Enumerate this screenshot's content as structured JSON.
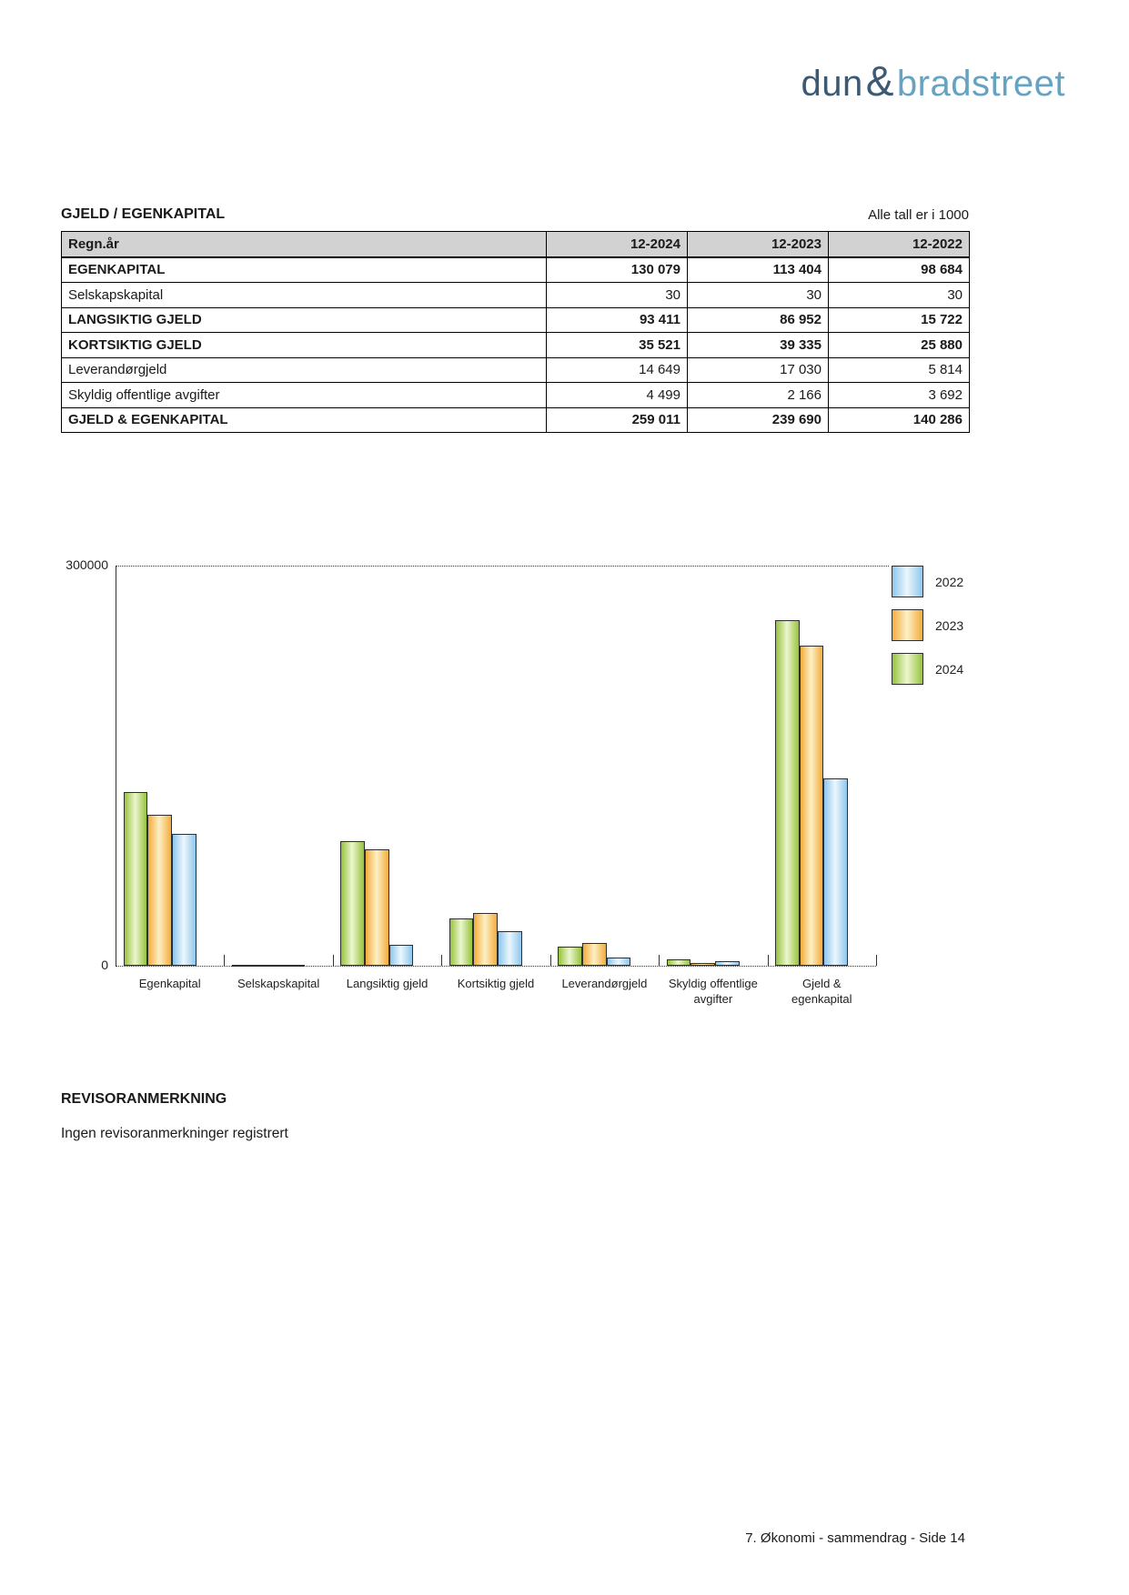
{
  "logo": {
    "dun": "dun",
    "amp": "&",
    "bradstreet": "bradstreet"
  },
  "table": {
    "title": "GJELD / EGENKAPITAL",
    "note": "Alle tall er i 1000",
    "header": [
      "Regn.år",
      "12-2024",
      "12-2023",
      "12-2022"
    ],
    "rows": [
      {
        "label": "EGENKAPITAL",
        "bold": true,
        "values": [
          "130 079",
          "113 404",
          "98 684"
        ]
      },
      {
        "label": "Selskapskapital",
        "bold": false,
        "values": [
          "30",
          "30",
          "30"
        ]
      },
      {
        "label": "LANGSIKTIG GJELD",
        "bold": true,
        "values": [
          "93 411",
          "86 952",
          "15 722"
        ]
      },
      {
        "label": "KORTSIKTIG GJELD",
        "bold": true,
        "values": [
          "35 521",
          "39 335",
          "25 880"
        ]
      },
      {
        "label": "Leverandørgjeld",
        "bold": false,
        "values": [
          "14 649",
          "17 030",
          "5 814"
        ]
      },
      {
        "label": "Skyldig offentlige avgifter",
        "bold": false,
        "values": [
          "4 499",
          "2 166",
          "3 692"
        ]
      },
      {
        "label": "GJELD & EGENKAPITAL",
        "bold": true,
        "values": [
          "259 011",
          "239 690",
          "140 286"
        ]
      }
    ]
  },
  "chart_data": {
    "type": "bar",
    "title": "",
    "categories": [
      "Egenkapital",
      "Selskapskapital",
      "Langsiktig gjeld",
      "Kortsiktig gjeld",
      "Leverandørgjeld",
      "Skyldig offentlige avgifter",
      "Gjeld & egenkapital"
    ],
    "series": [
      {
        "name": "2024",
        "color": "green",
        "values": [
          130079,
          30,
          93411,
          35521,
          14649,
          4499,
          259011
        ]
      },
      {
        "name": "2023",
        "color": "orange",
        "values": [
          113404,
          30,
          86952,
          39335,
          17030,
          2166,
          239690
        ]
      },
      {
        "name": "2022",
        "color": "blue",
        "values": [
          98684,
          30,
          15722,
          25880,
          5814,
          3692,
          140286
        ]
      }
    ],
    "bar_order_note": "series listed left-to-right within each group",
    "legend": [
      "2022",
      "2023",
      "2024"
    ],
    "legend_position": "right-top",
    "ylim": [
      0,
      300000
    ],
    "yticks": [
      "300000",
      "0"
    ],
    "grid": "dotted line at 300000 and dotted baseline with group ticks"
  },
  "revisor": {
    "heading": "REVISORANMERKNING",
    "body": "Ingen revisoranmerkninger registrert"
  },
  "footer": {
    "text": "7. Økonomi - sammendrag - Side 14"
  },
  "colors": {
    "logo_dark": "#3c5a74",
    "logo_light": "#66a3c1",
    "table_header_bg": "#d2d2d2",
    "table_border": "#000000",
    "text": "#1a1a1a",
    "bar_outline": "#2f2f2f",
    "grid_line": "#333333",
    "series_green_edge": "#97c33d",
    "series_green_center": "#ecf6cf",
    "series_orange_edge": "#f3ac3a",
    "series_orange_center": "#fdf0c6",
    "series_blue_edge": "#8ec6ec",
    "series_blue_center": "#ecf7fd"
  }
}
